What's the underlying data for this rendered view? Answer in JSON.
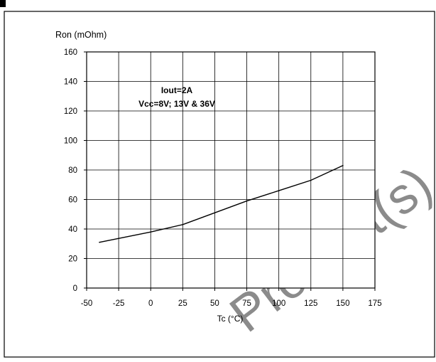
{
  "chart_data": {
    "type": "line",
    "title": "",
    "ylabel": "Ron (mOhm)",
    "xlabel": "Tc (°C)",
    "xlim": [
      -50,
      175
    ],
    "ylim": [
      0,
      160
    ],
    "xticks": [
      -50,
      -25,
      0,
      25,
      50,
      75,
      100,
      125,
      150,
      175
    ],
    "yticks": [
      0,
      20,
      40,
      60,
      80,
      100,
      120,
      140,
      160
    ],
    "grid": true,
    "annotation": [
      "Iout=2A",
      "Vcc=8V; 13V & 36V"
    ],
    "series": [
      {
        "x": [
          -40,
          0,
          25,
          50,
          75,
          100,
          125,
          150
        ],
        "y": [
          31,
          38,
          43,
          51,
          59,
          66,
          73,
          83
        ],
        "color": "#000000"
      }
    ]
  },
  "watermark": "Product(s) - O"
}
